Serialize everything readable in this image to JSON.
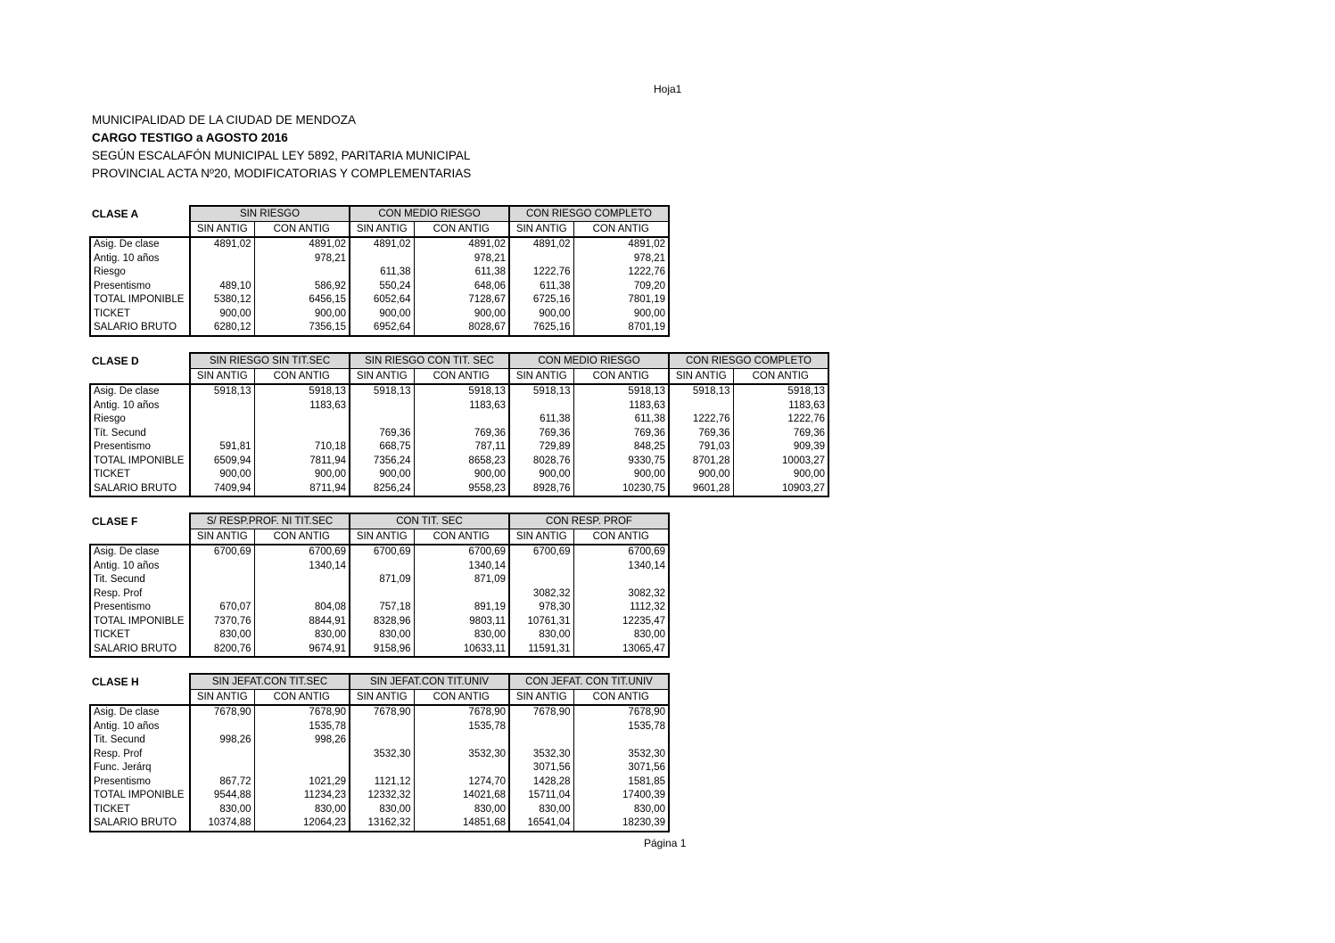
{
  "sheet_label": "Hoja1",
  "doc_header": {
    "line1": "MUNICIPALIDAD DE LA CIUDAD DE MENDOZA",
    "line2": "CARGO TESTIGO a AGOSTO 2016",
    "line3": "SEGÚN ESCALAFÓN MUNICIPAL LEY 5892, PARITARIA MUNICIPAL",
    "line4": "PROVINCIAL ACTA Nº20, MODIFICATORIAS Y COMPLEMENTARIAS"
  },
  "footer": {
    "page_label": "Página 1"
  },
  "colors": {
    "group_header_fill": "#d9d9d9",
    "border": "#000000",
    "text": "#000000",
    "background": "#ffffff"
  },
  "subheaders": [
    "SIN ANTIG",
    "CON ANTIG"
  ],
  "tables": [
    {
      "id": "clase-a",
      "name": "CLASE A",
      "groups": [
        "SIN RIESGO",
        "CON MEDIO RIESGO",
        "CON RIESGO COMPLETO"
      ],
      "rows": [
        {
          "label": "Asig. De clase",
          "values": [
            "4891,02",
            "4891,02",
            "4891,02",
            "4891,02",
            "4891,02",
            "4891,02"
          ]
        },
        {
          "label": "Antig. 10 años",
          "values": [
            "",
            "978,21",
            "",
            "978,21",
            "",
            "978,21"
          ]
        },
        {
          "label": "Riesgo",
          "values": [
            "",
            "",
            "611,38",
            "611,38",
            "1222,76",
            "1222,76"
          ]
        },
        {
          "label": "Presentismo",
          "values": [
            "489,10",
            "586,92",
            "550,24",
            "648,06",
            "611,38",
            "709,20"
          ]
        },
        {
          "label": "TOTAL IMPONIBLE",
          "values": [
            "5380,12",
            "6456,15",
            "6052,64",
            "7128,67",
            "6725,16",
            "7801,19"
          ]
        },
        {
          "label": "TICKET",
          "values": [
            "900,00",
            "900,00",
            "900,00",
            "900,00",
            "900,00",
            "900,00"
          ]
        },
        {
          "label": "SALARIO BRUTO",
          "values": [
            "6280,12",
            "7356,15",
            "6952,64",
            "8028,67",
            "7625,16",
            "8701,19"
          ]
        }
      ]
    },
    {
      "id": "clase-d",
      "name": "CLASE D",
      "groups": [
        "SIN RIESGO SIN TIT.SEC",
        "SIN RIESGO CON TIT. SEC",
        "CON MEDIO RIESGO",
        "CON RIESGO COMPLETO"
      ],
      "rows": [
        {
          "label": "Asig. De clase",
          "values": [
            "5918,13",
            "5918,13",
            "5918,13",
            "5918,13",
            "5918,13",
            "5918,13",
            "5918,13",
            "5918,13"
          ]
        },
        {
          "label": "Antig. 10 años",
          "values": [
            "",
            "1183,63",
            "",
            "1183,63",
            "",
            "1183,63",
            "",
            "1183,63"
          ]
        },
        {
          "label": "Riesgo",
          "values": [
            "",
            "",
            "",
            "",
            "611,38",
            "611,38",
            "1222,76",
            "1222,76"
          ]
        },
        {
          "label": "Tít. Secund",
          "values": [
            "",
            "",
            "769,36",
            "769,36",
            "769,36",
            "769,36",
            "769,36",
            "769,36"
          ]
        },
        {
          "label": "Presentismo",
          "values": [
            "591,81",
            "710,18",
            "668,75",
            "787,11",
            "729,89",
            "848,25",
            "791,03",
            "909,39"
          ]
        },
        {
          "label": "TOTAL IMPONIBLE",
          "values": [
            "6509,94",
            "7811,94",
            "7356,24",
            "8658,23",
            "8028,76",
            "9330,75",
            "8701,28",
            "10003,27"
          ]
        },
        {
          "label": "TICKET",
          "values": [
            "900,00",
            "900,00",
            "900,00",
            "900,00",
            "900,00",
            "900,00",
            "900,00",
            "900,00"
          ]
        },
        {
          "label": "SALARIO BRUTO",
          "values": [
            "7409,94",
            "8711,94",
            "8256,24",
            "9558,23",
            "8928,76",
            "10230,75",
            "9601,28",
            "10903,27"
          ]
        }
      ]
    },
    {
      "id": "clase-f",
      "name": "CLASE F",
      "groups": [
        "S/ RESP.PROF. NI TIT.SEC",
        "CON TIT. SEC",
        "CON RESP. PROF"
      ],
      "rows": [
        {
          "label": "Asig. De clase",
          "values": [
            "6700,69",
            "6700,69",
            "6700,69",
            "6700,69",
            "6700,69",
            "6700,69"
          ]
        },
        {
          "label": "Antig. 10 años",
          "values": [
            "",
            "1340,14",
            "",
            "1340,14",
            "",
            "1340,14"
          ]
        },
        {
          "label": "Tit. Secund",
          "values": [
            "",
            "",
            "871,09",
            "871,09",
            "",
            ""
          ]
        },
        {
          "label": "Resp. Prof",
          "values": [
            "",
            "",
            "",
            "",
            "3082,32",
            "3082,32"
          ]
        },
        {
          "label": "Presentismo",
          "values": [
            "670,07",
            "804,08",
            "757,18",
            "891,19",
            "978,30",
            "1112,32"
          ]
        },
        {
          "label": "TOTAL IMPONIBLE",
          "values": [
            "7370,76",
            "8844,91",
            "8328,96",
            "9803,11",
            "10761,31",
            "12235,47"
          ]
        },
        {
          "label": "TICKET",
          "values": [
            "830,00",
            "830,00",
            "830,00",
            "830,00",
            "830,00",
            "830,00"
          ]
        },
        {
          "label": "SALARIO BRUTO",
          "values": [
            "8200,76",
            "9674,91",
            "9158,96",
            "10633,11",
            "11591,31",
            "13065,47"
          ]
        }
      ]
    },
    {
      "id": "clase-h",
      "name": "CLASE H",
      "groups": [
        "SIN JEFAT.CON TIT.SEC",
        "SIN JEFAT.CON TIT.UNIV",
        "CON JEFAT. CON TIT.UNIV"
      ],
      "rows": [
        {
          "label": "Asig. De clase",
          "values": [
            "7678,90",
            "7678,90",
            "7678,90",
            "7678,90",
            "7678,90",
            "7678,90"
          ]
        },
        {
          "label": "Antig. 10 años",
          "values": [
            "",
            "1535,78",
            "",
            "1535,78",
            "",
            "1535,78"
          ]
        },
        {
          "label": "Tit. Secund",
          "values": [
            "998,26",
            "998,26",
            "",
            "",
            "",
            ""
          ]
        },
        {
          "label": "Resp. Prof",
          "values": [
            "",
            "",
            "3532,30",
            "3532,30",
            "3532,30",
            "3532,30"
          ]
        },
        {
          "label": "Func. Jerárq",
          "values": [
            "",
            "",
            "",
            "",
            "3071,56",
            "3071,56"
          ]
        },
        {
          "label": "Presentismo",
          "values": [
            "867,72",
            "1021,29",
            "1121,12",
            "1274,70",
            "1428,28",
            "1581,85"
          ]
        },
        {
          "label": "TOTAL IMPONIBLE",
          "values": [
            "9544,88",
            "11234,23",
            "12332,32",
            "14021,68",
            "15711,04",
            "17400,39"
          ]
        },
        {
          "label": "TICKET",
          "values": [
            "830,00",
            "830,00",
            "830,00",
            "830,00",
            "830,00",
            "830,00"
          ]
        },
        {
          "label": "SALARIO BRUTO",
          "values": [
            "10374,88",
            "12064,23",
            "13162,32",
            "14851,68",
            "16541,04",
            "18230,39"
          ]
        }
      ]
    }
  ]
}
